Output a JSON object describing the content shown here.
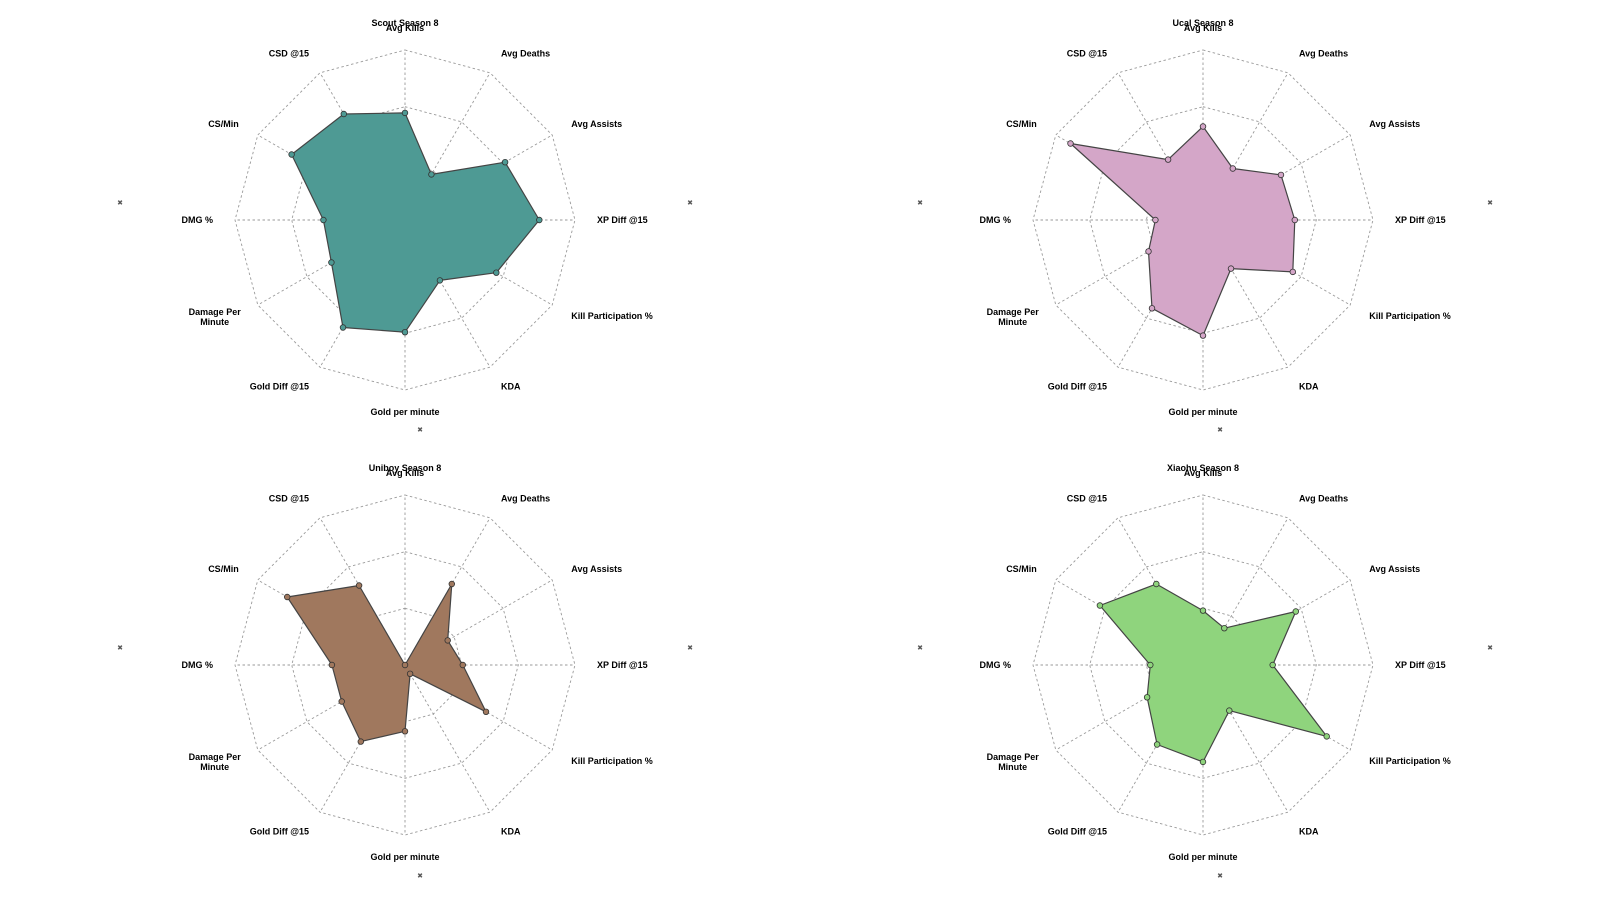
{
  "chart_data": [
    {
      "type": "radar",
      "title": "Scout Season 8",
      "color": "#4E9A94",
      "axes": [
        "Avg Kills",
        "Avg Deaths",
        "Avg Assists",
        "XP Diff @15",
        "Kill Participation %",
        "KDA",
        "Gold per minute",
        "Gold Diff @15",
        "Damage Per Minute",
        "DMG %",
        "CS/Min",
        "CSD @15"
      ],
      "values": [
        0.63,
        0.31,
        0.68,
        0.79,
        0.62,
        0.41,
        0.66,
        0.73,
        0.5,
        0.48,
        0.77,
        0.72
      ],
      "rmax": 1.0,
      "grid_rings": 3
    },
    {
      "type": "radar",
      "title": "Ucal Season 8",
      "color": "#D4A6C8",
      "axes": [
        "Avg Kills",
        "Avg Deaths",
        "Avg Assists",
        "XP Diff @15",
        "Kill Participation %",
        "KDA",
        "Gold per minute",
        "Gold Diff @15",
        "Damage Per Minute",
        "DMG %",
        "CS/Min",
        "CSD @15"
      ],
      "values": [
        0.55,
        0.35,
        0.53,
        0.54,
        0.61,
        0.33,
        0.68,
        0.6,
        0.37,
        0.28,
        0.9,
        0.41
      ],
      "rmax": 1.0,
      "grid_rings": 3
    },
    {
      "type": "radar",
      "title": "Uniboy Season 8",
      "color": "#A0785E",
      "axes": [
        "Avg Kills",
        "Avg Deaths",
        "Avg Assists",
        "XP Diff @15",
        "Kill Participation %",
        "KDA",
        "Gold per minute",
        "Gold Diff @15",
        "Damage Per Minute",
        "DMG %",
        "CS/Min",
        "CSD @15"
      ],
      "values": [
        0.0,
        0.55,
        0.29,
        0.34,
        0.55,
        0.06,
        0.39,
        0.52,
        0.43,
        0.43,
        0.8,
        0.54
      ],
      "rmax": 1.0,
      "grid_rings": 3
    },
    {
      "type": "radar",
      "title": "Xiaohu Season 8",
      "color": "#8FD47D",
      "axes": [
        "Avg Kills",
        "Avg Deaths",
        "Avg Assists",
        "XP Diff @15",
        "Kill Participation %",
        "KDA",
        "Gold per minute",
        "Gold Diff @15",
        "Damage Per Minute",
        "DMG %",
        "CS/Min",
        "CSD @15"
      ],
      "values": [
        0.32,
        0.25,
        0.63,
        0.41,
        0.84,
        0.31,
        0.57,
        0.54,
        0.38,
        0.31,
        0.7,
        0.55
      ],
      "rmax": 1.0,
      "grid_rings": 3
    }
  ]
}
